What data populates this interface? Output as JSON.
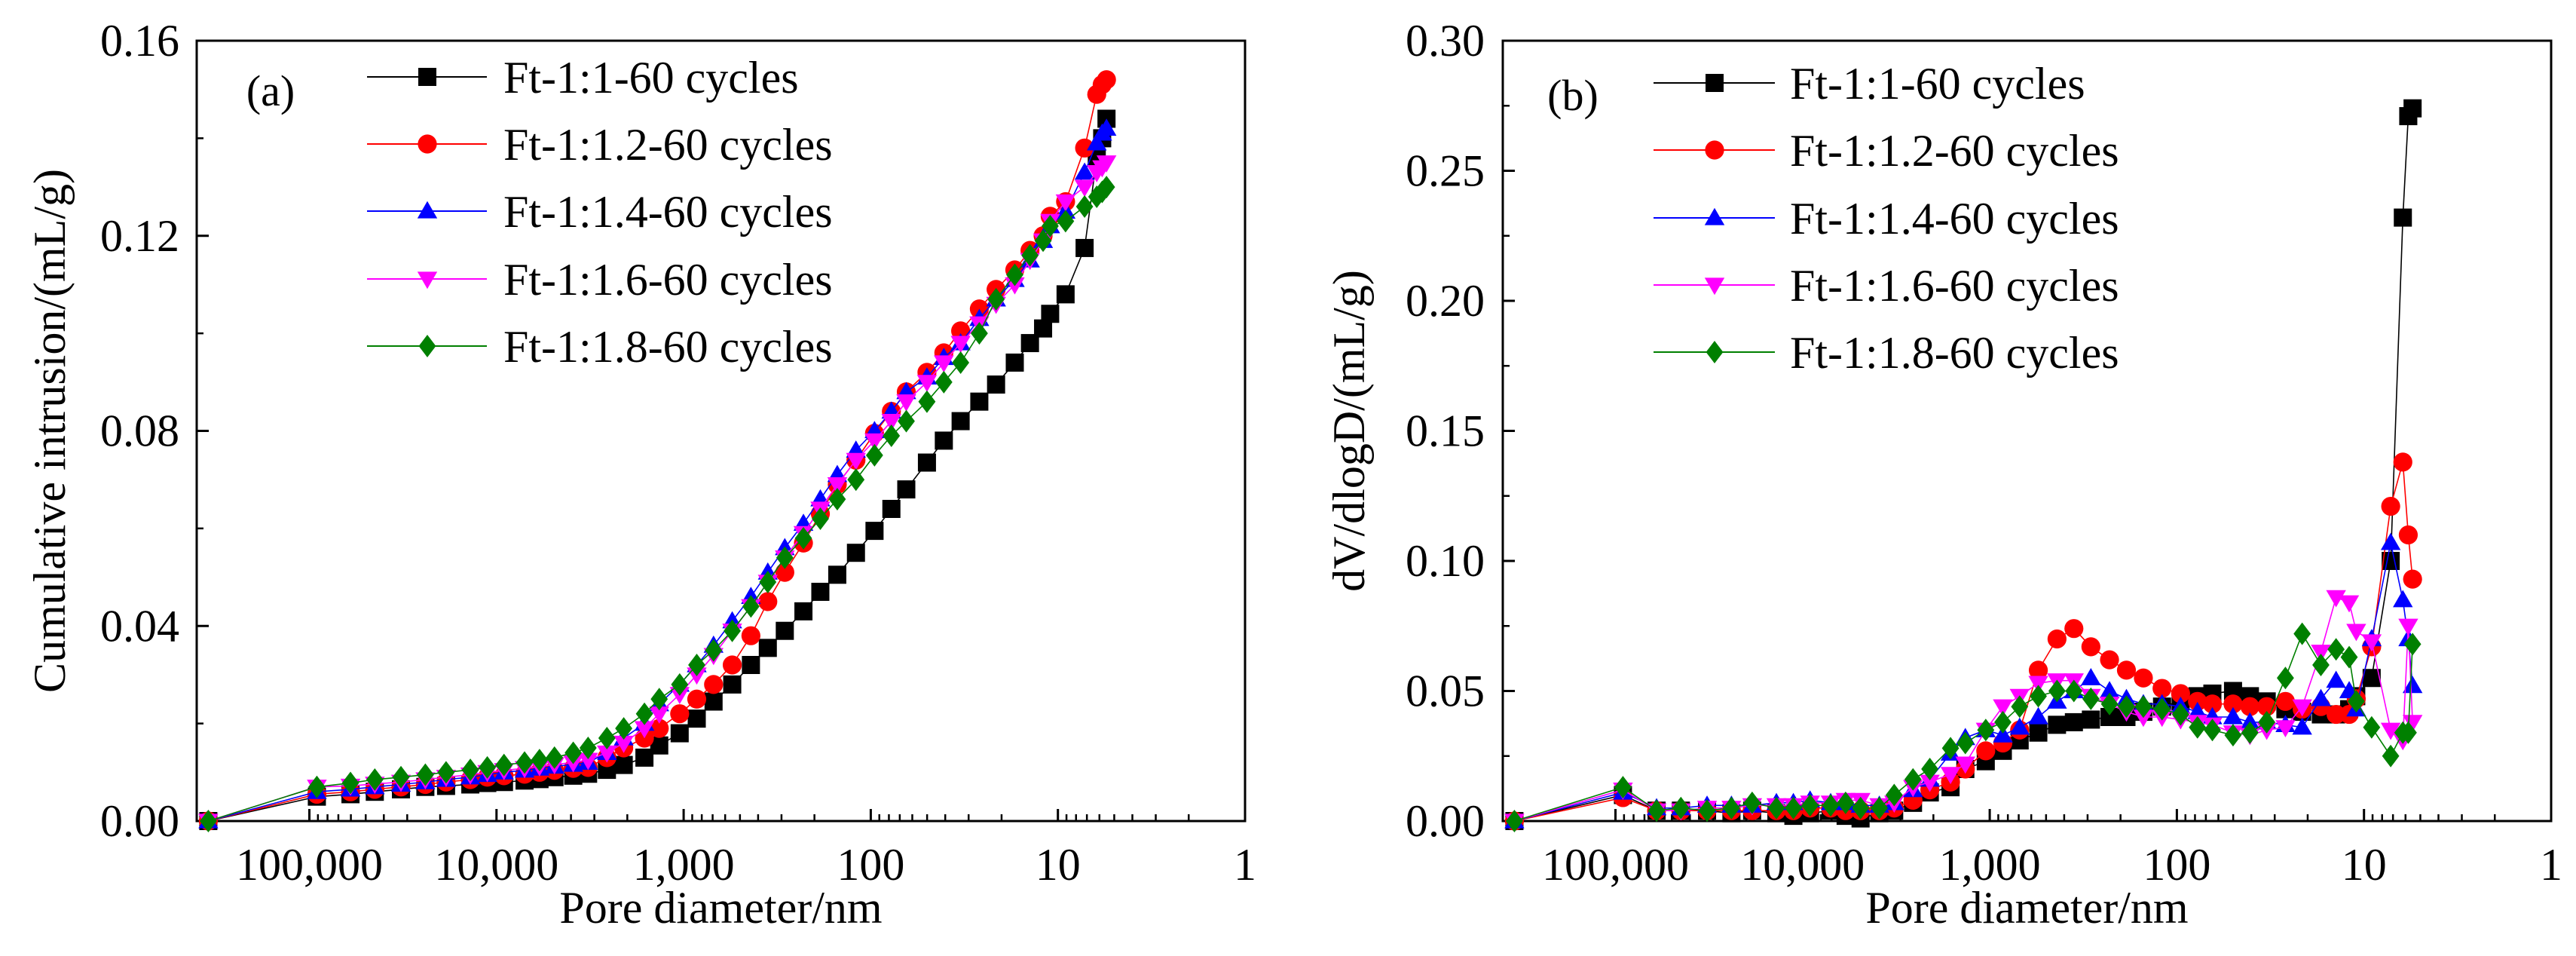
{
  "chart_data": [
    {
      "type": "line",
      "panel_label": "(a)",
      "xlabel": "Pore diameter/nm",
      "ylabel": "Cumulative intrusion/(mL/g)",
      "x_scale": "log-reversed",
      "xlim": [
        400000,
        1
      ],
      "ylim": [
        0,
        0.16
      ],
      "x_ticks": [
        {
          "value": 100000,
          "label": "100,000"
        },
        {
          "value": 10000,
          "label": "10,000"
        },
        {
          "value": 1000,
          "label": "1,000"
        },
        {
          "value": 100,
          "label": "100"
        },
        {
          "value": 10,
          "label": "10"
        },
        {
          "value": 1,
          "label": "1"
        }
      ],
      "y_ticks": [
        {
          "value": 0,
          "label": "0.00"
        },
        {
          "value": 0.04,
          "label": "0.04"
        },
        {
          "value": 0.08,
          "label": "0.08"
        },
        {
          "value": 0.12,
          "label": "0.12"
        },
        {
          "value": 0.16,
          "label": "0.16"
        }
      ],
      "y_minor_step": 0.02,
      "legend_position": "top-left",
      "x": [
        346700,
        91200,
        60300,
        44700,
        32400,
        24000,
        18600,
        13800,
        11200,
        9120,
        7080,
        5890,
        4900,
        3890,
        3240,
        2570,
        2090,
        1620,
        1350,
        1050,
        851,
        692,
        550,
        437,
        355,
        288,
        229,
        186,
        151,
        120,
        95.5,
        77.6,
        64.6,
        50.1,
        40.7,
        33.1,
        26.3,
        21.4,
        17.0,
        14.1,
        12.0,
        11.0,
        9.1,
        7.2,
        6.2,
        5.8,
        5.5
      ],
      "series": [
        {
          "name": "Ft-1:1-60 cycles",
          "color": "#000000",
          "marker": "square",
          "values": [
            0,
            0.005,
            0.0055,
            0.006,
            0.0065,
            0.007,
            0.0072,
            0.0075,
            0.0078,
            0.008,
            0.0083,
            0.0086,
            0.009,
            0.0093,
            0.0097,
            0.0105,
            0.0115,
            0.013,
            0.0155,
            0.018,
            0.021,
            0.0245,
            0.028,
            0.032,
            0.0355,
            0.039,
            0.043,
            0.047,
            0.0505,
            0.055,
            0.0595,
            0.064,
            0.068,
            0.0735,
            0.078,
            0.082,
            0.086,
            0.0895,
            0.094,
            0.098,
            0.101,
            0.104,
            0.108,
            0.1175,
            0.136,
            0.14,
            0.144
          ]
        },
        {
          "name": "Ft-1:1.2-60 cycles",
          "color": "#ff0000",
          "marker": "circle",
          "values": [
            0,
            0.0055,
            0.006,
            0.0065,
            0.007,
            0.0075,
            0.008,
            0.0085,
            0.009,
            0.0093,
            0.0096,
            0.01,
            0.0104,
            0.0108,
            0.011,
            0.013,
            0.015,
            0.017,
            0.019,
            0.022,
            0.025,
            0.028,
            0.032,
            0.038,
            0.045,
            0.051,
            0.057,
            0.063,
            0.069,
            0.074,
            0.0795,
            0.084,
            0.088,
            0.092,
            0.096,
            0.1005,
            0.105,
            0.109,
            0.113,
            0.117,
            0.12,
            0.124,
            0.127,
            0.138,
            0.149,
            0.151,
            0.152
          ]
        },
        {
          "name": "Ft-1:1.4-60 cycles",
          "color": "#0000ff",
          "marker": "triangle-up",
          "values": [
            0,
            0.006,
            0.0065,
            0.007,
            0.0075,
            0.008,
            0.0085,
            0.009,
            0.0095,
            0.01,
            0.0104,
            0.0108,
            0.0112,
            0.0116,
            0.012,
            0.014,
            0.017,
            0.02,
            0.024,
            0.028,
            0.032,
            0.036,
            0.041,
            0.046,
            0.051,
            0.056,
            0.061,
            0.066,
            0.071,
            0.076,
            0.08,
            0.084,
            0.088,
            0.091,
            0.095,
            0.098,
            0.103,
            0.107,
            0.111,
            0.115,
            0.119,
            0.122,
            0.125,
            0.133,
            0.139,
            0.141,
            0.142
          ]
        },
        {
          "name": "Ft-1:1.6-60 cycles",
          "color": "#ff00ff",
          "marker": "triangle-down",
          "values": [
            0,
            0.007,
            0.0072,
            0.0076,
            0.008,
            0.0085,
            0.009,
            0.0095,
            0.01,
            0.0104,
            0.0108,
            0.0112,
            0.0116,
            0.012,
            0.0125,
            0.014,
            0.016,
            0.019,
            0.022,
            0.026,
            0.03,
            0.034,
            0.039,
            0.044,
            0.049,
            0.054,
            0.059,
            0.064,
            0.069,
            0.074,
            0.078,
            0.082,
            0.086,
            0.09,
            0.094,
            0.098,
            0.102,
            0.106,
            0.11,
            0.115,
            0.119,
            0.123,
            0.127,
            0.13,
            0.133,
            0.134,
            0.135
          ]
        },
        {
          "name": "Ft-1:1.8-60 cycles",
          "color": "#008000",
          "marker": "diamond",
          "values": [
            0,
            0.007,
            0.0078,
            0.0085,
            0.009,
            0.0095,
            0.01,
            0.0105,
            0.011,
            0.0115,
            0.012,
            0.0125,
            0.013,
            0.014,
            0.015,
            0.017,
            0.019,
            0.022,
            0.025,
            0.028,
            0.032,
            0.035,
            0.039,
            0.044,
            0.049,
            0.054,
            0.058,
            0.062,
            0.066,
            0.07,
            0.075,
            0.079,
            0.082,
            0.086,
            0.09,
            0.094,
            0.1,
            0.107,
            0.112,
            0.116,
            0.119,
            0.122,
            0.123,
            0.126,
            0.128,
            0.129,
            0.13
          ]
        }
      ]
    },
    {
      "type": "line",
      "panel_label": "(b)",
      "xlabel": "Pore diameter/nm",
      "ylabel": "dV/dlogD/(mL/g)",
      "x_scale": "log-reversed",
      "xlim": [
        400000,
        1
      ],
      "ylim": [
        0,
        0.3
      ],
      "x_ticks": [
        {
          "value": 100000,
          "label": "100,000"
        },
        {
          "value": 10000,
          "label": "10,000"
        },
        {
          "value": 1000,
          "label": "1,000"
        },
        {
          "value": 100,
          "label": "100"
        },
        {
          "value": 10,
          "label": "10"
        },
        {
          "value": 1,
          "label": "1"
        }
      ],
      "y_ticks": [
        {
          "value": 0,
          "label": "0.00"
        },
        {
          "value": 0.05,
          "label": "0.05"
        },
        {
          "value": 0.1,
          "label": "0.10"
        },
        {
          "value": 0.15,
          "label": "0.15"
        },
        {
          "value": 0.2,
          "label": "0.20"
        },
        {
          "value": 0.25,
          "label": "0.25"
        },
        {
          "value": 0.3,
          "label": "0.30"
        }
      ],
      "y_minor_step": 0.025,
      "legend_position": "top-left",
      "x": [
        346700,
        91200,
        60300,
        44700,
        32400,
        24000,
        18600,
        13800,
        11200,
        9120,
        7080,
        5890,
        4900,
        3890,
        3240,
        2570,
        2090,
        1620,
        1350,
        1050,
        851,
        692,
        550,
        437,
        355,
        288,
        229,
        186,
        151,
        120,
        95.5,
        77.6,
        64.6,
        50.1,
        40.7,
        33.1,
        26.3,
        21.4,
        17.0,
        14.1,
        12.0,
        11.0,
        9.1,
        7.2,
        6.2,
        5.8,
        5.5
      ],
      "series": [
        {
          "name": "Ft-1:1-60 cycles",
          "color": "#000000",
          "marker": "square",
          "values": [
            0,
            0.01,
            0.004,
            0.004,
            0.004,
            0.003,
            0.004,
            0.003,
            0.002,
            0.003,
            0.004,
            0.002,
            0.001,
            0.003,
            0.004,
            0.007,
            0.011,
            0.013,
            0.02,
            0.023,
            0.027,
            0.031,
            0.034,
            0.037,
            0.038,
            0.039,
            0.04,
            0.04,
            0.042,
            0.044,
            0.046,
            0.048,
            0.049,
            0.05,
            0.048,
            0.046,
            0.043,
            0.042,
            0.041,
            0.041,
            0.043,
            0.048,
            0.055,
            0.1,
            0.232,
            0.271,
            0.274
          ]
        },
        {
          "name": "Ft-1:1.2-60 cycles",
          "color": "#ff0000",
          "marker": "circle",
          "values": [
            0,
            0.009,
            0.004,
            0.004,
            0.004,
            0.004,
            0.004,
            0.004,
            0.004,
            0.005,
            0.005,
            0.004,
            0.004,
            0.004,
            0.005,
            0.008,
            0.012,
            0.015,
            0.02,
            0.027,
            0.03,
            0.035,
            0.058,
            0.07,
            0.074,
            0.067,
            0.062,
            0.058,
            0.055,
            0.051,
            0.049,
            0.046,
            0.045,
            0.045,
            0.044,
            0.044,
            0.046,
            0.043,
            0.044,
            0.041,
            0.041,
            0.047,
            0.067,
            0.121,
            0.138,
            0.11,
            0.093
          ]
        },
        {
          "name": "Ft-1:1.4-60 cycles",
          "color": "#0000ff",
          "marker": "triangle-up",
          "values": [
            0,
            0.011,
            0.005,
            0.005,
            0.006,
            0.006,
            0.006,
            0.007,
            0.007,
            0.008,
            0.007,
            0.007,
            0.006,
            0.006,
            0.007,
            0.012,
            0.016,
            0.026,
            0.032,
            0.035,
            0.033,
            0.036,
            0.04,
            0.046,
            0.05,
            0.055,
            0.05,
            0.047,
            0.045,
            0.045,
            0.044,
            0.042,
            0.04,
            0.04,
            0.038,
            0.038,
            0.037,
            0.036,
            0.047,
            0.054,
            0.05,
            0.043,
            0.07,
            0.107,
            0.085,
            0.07,
            0.052
          ]
        },
        {
          "name": "Ft-1:1.6-60 cycles",
          "color": "#ff00ff",
          "marker": "triangle-down",
          "values": [
            0,
            0.012,
            0.004,
            0.004,
            0.005,
            0.005,
            0.006,
            0.006,
            0.006,
            0.007,
            0.007,
            0.008,
            0.008,
            0.006,
            0.007,
            0.013,
            0.015,
            0.018,
            0.022,
            0.035,
            0.044,
            0.048,
            0.053,
            0.054,
            0.054,
            0.048,
            0.045,
            0.042,
            0.04,
            0.04,
            0.039,
            0.038,
            0.037,
            0.034,
            0.033,
            0.035,
            0.036,
            0.044,
            0.065,
            0.086,
            0.084,
            0.073,
            0.069,
            0.035,
            0.031,
            0.075,
            0.038
          ]
        },
        {
          "name": "Ft-1:1.8-60 cycles",
          "color": "#008000",
          "marker": "diamond",
          "values": [
            0,
            0.013,
            0.004,
            0.005,
            0.004,
            0.005,
            0.007,
            0.005,
            0.005,
            0.006,
            0.006,
            0.007,
            0.005,
            0.005,
            0.01,
            0.016,
            0.02,
            0.028,
            0.03,
            0.035,
            0.038,
            0.044,
            0.048,
            0.05,
            0.05,
            0.047,
            0.045,
            0.044,
            0.044,
            0.043,
            0.041,
            0.036,
            0.035,
            0.033,
            0.034,
            0.038,
            0.055,
            0.072,
            0.06,
            0.066,
            0.063,
            0.046,
            0.036,
            0.025,
            0.034,
            0.034,
            0.068
          ]
        }
      ]
    }
  ]
}
